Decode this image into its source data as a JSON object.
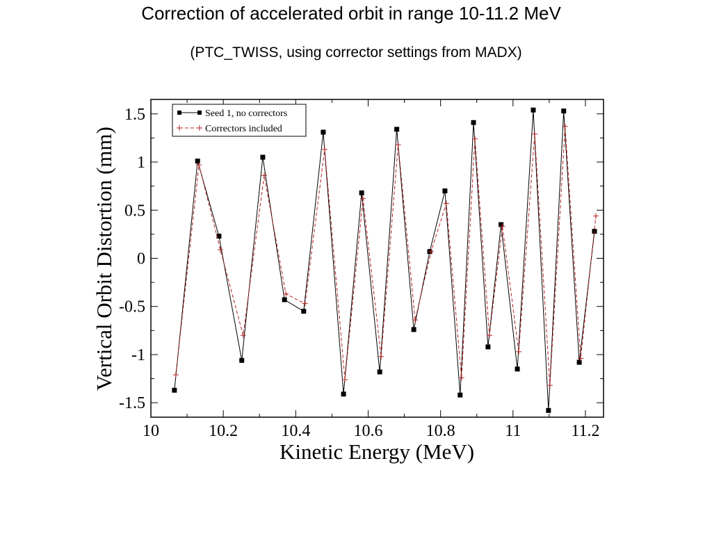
{
  "title": "Correction of accelerated orbit in range 10-11.2 MeV",
  "subtitle": "(PTC_TWISS, using corrector settings from MADX)",
  "chart_data": {
    "type": "line",
    "xlabel": "Kinetic Energy (MeV)",
    "ylabel": "Vertical Orbit Distortion (mm)",
    "xlim": [
      10,
      11.25
    ],
    "ylim": [
      -1.65,
      1.65
    ],
    "xticks": [
      "10",
      "10.2",
      "10.4",
      "10.6",
      "10.8",
      "11",
      "11.2"
    ],
    "yticks": [
      "1.5",
      "1",
      "0.5",
      "0",
      "-0.5",
      "-1",
      "-1.5"
    ],
    "legend_position": "top-left",
    "grid": false,
    "x": [
      10.065,
      10.129,
      10.188,
      10.251,
      10.309,
      10.369,
      10.422,
      10.476,
      10.532,
      10.582,
      10.632,
      10.679,
      10.726,
      10.77,
      10.812,
      10.854,
      10.891,
      10.931,
      10.967,
      11.012,
      11.056,
      11.098,
      11.14,
      11.183,
      11.225
    ],
    "series": [
      {
        "name": "Seed 1, no correctors",
        "color": "#000000",
        "marker": "square",
        "line": "solid",
        "values": [
          -1.37,
          1.01,
          0.23,
          -1.06,
          1.05,
          -0.43,
          -0.55,
          1.31,
          -1.41,
          0.68,
          -1.18,
          1.34,
          -0.74,
          0.07,
          0.7,
          -1.42,
          1.41,
          -0.92,
          0.35,
          -1.15,
          1.54,
          -1.58,
          1.53,
          -1.08,
          0.28
        ]
      },
      {
        "name": "Correctors included",
        "color": "#b22222",
        "marker": "plus",
        "line": "dashed",
        "values": [
          -1.21,
          0.97,
          0.09,
          -0.8,
          0.86,
          -0.37,
          -0.47,
          1.13,
          -1.26,
          0.62,
          -1.02,
          1.18,
          -0.64,
          0.07,
          0.57,
          -1.24,
          1.24,
          -0.8,
          0.33,
          -0.97,
          1.29,
          -1.32,
          1.37,
          -1.04,
          0.44
        ]
      }
    ]
  }
}
